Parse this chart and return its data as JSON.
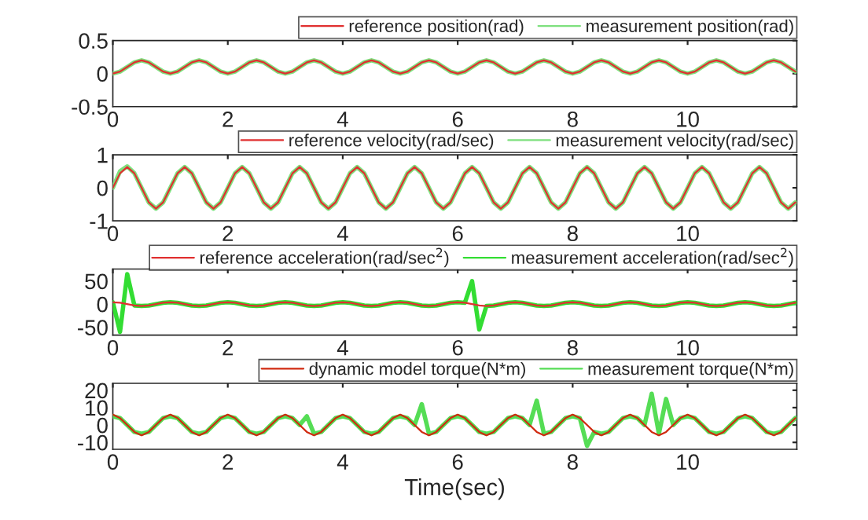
{
  "chart_data": [
    {
      "type": "line",
      "xlim": [
        0,
        11.9
      ],
      "xticks": [
        0,
        2,
        4,
        6,
        8,
        10
      ],
      "ylim": [
        -0.5,
        0.5
      ],
      "yticks": [
        -0.5,
        0,
        0.5
      ],
      "legend": "top right",
      "grid": false,
      "x": [
        0,
        0.125,
        0.25,
        0.375,
        0.5,
        0.625,
        0.75,
        0.875,
        1,
        1.125,
        1.25,
        1.375,
        1.5,
        1.625,
        1.75,
        1.875,
        2,
        2.125,
        2.25,
        2.375,
        2.5,
        2.625,
        2.75,
        2.875,
        3,
        3.125,
        3.25,
        3.375,
        3.5,
        3.625,
        3.75,
        3.875,
        4,
        4.125,
        4.25,
        4.375,
        4.5,
        4.625,
        4.75,
        4.875,
        5,
        5.125,
        5.25,
        5.375,
        5.5,
        5.625,
        5.75,
        5.875,
        6,
        6.125,
        6.25,
        6.375,
        6.5,
        6.625,
        6.75,
        6.875,
        7,
        7.125,
        7.25,
        7.375,
        7.5,
        7.625,
        7.75,
        7.875,
        8,
        8.125,
        8.25,
        8.375,
        8.5,
        8.625,
        8.75,
        8.875,
        9,
        9.125,
        9.25,
        9.375,
        9.5,
        9.625,
        9.75,
        9.875,
        10,
        10.125,
        10.25,
        10.375,
        10.5,
        10.625,
        10.75,
        10.875,
        11,
        11.125,
        11.25,
        11.375,
        11.5,
        11.625,
        11.75,
        11.875
      ],
      "series": [
        {
          "name": "reference position(rad)",
          "color": "#e03030",
          "values": [
            0,
            0.03,
            0.1,
            0.17,
            0.2,
            0.17,
            0.1,
            0.03,
            0,
            0.03,
            0.1,
            0.17,
            0.2,
            0.17,
            0.1,
            0.03,
            0,
            0.03,
            0.1,
            0.17,
            0.2,
            0.17,
            0.1,
            0.03,
            0,
            0.03,
            0.1,
            0.17,
            0.2,
            0.17,
            0.1,
            0.03,
            0,
            0.03,
            0.1,
            0.17,
            0.2,
            0.17,
            0.1,
            0.03,
            0,
            0.03,
            0.1,
            0.17,
            0.2,
            0.17,
            0.1,
            0.03,
            0,
            0.03,
            0.1,
            0.17,
            0.2,
            0.17,
            0.1,
            0.03,
            0,
            0.03,
            0.1,
            0.17,
            0.2,
            0.17,
            0.1,
            0.03,
            0,
            0.03,
            0.1,
            0.17,
            0.2,
            0.17,
            0.1,
            0.03,
            0,
            0.03,
            0.1,
            0.17,
            0.2,
            0.17,
            0.1,
            0.03,
            0,
            0.03,
            0.1,
            0.17,
            0.2,
            0.17,
            0.1,
            0.03,
            0,
            0.03,
            0.1,
            0.17,
            0.2,
            0.17,
            0.1,
            0.03
          ]
        },
        {
          "name": "measurement position(rad)",
          "color": "#7ee07e",
          "values": [
            0,
            0.03,
            0.1,
            0.17,
            0.2,
            0.17,
            0.1,
            0.03,
            0,
            0.03,
            0.1,
            0.17,
            0.2,
            0.17,
            0.1,
            0.03,
            0,
            0.03,
            0.1,
            0.17,
            0.2,
            0.17,
            0.1,
            0.03,
            0,
            0.03,
            0.1,
            0.17,
            0.2,
            0.17,
            0.1,
            0.03,
            0,
            0.03,
            0.1,
            0.17,
            0.2,
            0.17,
            0.1,
            0.03,
            0,
            0.03,
            0.1,
            0.17,
            0.2,
            0.17,
            0.1,
            0.03,
            0,
            0.03,
            0.1,
            0.17,
            0.2,
            0.17,
            0.1,
            0.03,
            0,
            0.03,
            0.1,
            0.17,
            0.2,
            0.17,
            0.1,
            0.03,
            0,
            0.03,
            0.1,
            0.17,
            0.2,
            0.17,
            0.1,
            0.03,
            0,
            0.03,
            0.1,
            0.17,
            0.2,
            0.17,
            0.1,
            0.03,
            0,
            0.03,
            0.1,
            0.17,
            0.2,
            0.17,
            0.1,
            0.03,
            0,
            0.03,
            0.1,
            0.17,
            0.2,
            0.17,
            0.1,
            0.03
          ]
        }
      ]
    },
    {
      "type": "line",
      "xlim": [
        0,
        11.9
      ],
      "xticks": [
        0,
        2,
        4,
        6,
        8,
        10
      ],
      "ylim": [
        -1,
        1
      ],
      "yticks": [
        -1,
        0,
        1
      ],
      "legend": "top right",
      "grid": false,
      "x": [
        0,
        0.125,
        0.25,
        0.375,
        0.5,
        0.625,
        0.75,
        0.875,
        1,
        1.125,
        1.25,
        1.375,
        1.5,
        1.625,
        1.75,
        1.875,
        2,
        2.125,
        2.25,
        2.375,
        2.5,
        2.625,
        2.75,
        2.875,
        3,
        3.125,
        3.25,
        3.375,
        3.5,
        3.625,
        3.75,
        3.875,
        4,
        4.125,
        4.25,
        4.375,
        4.5,
        4.625,
        4.75,
        4.875,
        5,
        5.125,
        5.25,
        5.375,
        5.5,
        5.625,
        5.75,
        5.875,
        6,
        6.125,
        6.25,
        6.375,
        6.5,
        6.625,
        6.75,
        6.875,
        7,
        7.125,
        7.25,
        7.375,
        7.5,
        7.625,
        7.75,
        7.875,
        8,
        8.125,
        8.25,
        8.375,
        8.5,
        8.625,
        8.75,
        8.875,
        9,
        9.125,
        9.25,
        9.375,
        9.5,
        9.625,
        9.75,
        9.875,
        10,
        10.125,
        10.25,
        10.375,
        10.5,
        10.625,
        10.75,
        10.875,
        11,
        11.125,
        11.25,
        11.375,
        11.5,
        11.625,
        11.75,
        11.875
      ],
      "series": [
        {
          "name": "reference velocity(rad/sec)",
          "color": "#e03030",
          "values": [
            0,
            0.44,
            0.63,
            0.44,
            0,
            -0.44,
            -0.63,
            -0.44,
            0,
            0.44,
            0.63,
            0.44,
            0,
            -0.44,
            -0.63,
            -0.44,
            0,
            0.44,
            0.63,
            0.44,
            0,
            -0.44,
            -0.63,
            -0.44,
            0,
            0.44,
            0.63,
            0.44,
            0,
            -0.44,
            -0.63,
            -0.44,
            0,
            0.44,
            0.63,
            0.44,
            0,
            -0.44,
            -0.63,
            -0.44,
            0,
            0.44,
            0.63,
            0.44,
            0,
            -0.44,
            -0.63,
            -0.44,
            0,
            0.44,
            0.63,
            0.44,
            0,
            -0.44,
            -0.63,
            -0.44,
            0,
            0.44,
            0.63,
            0.44,
            0,
            -0.44,
            -0.63,
            -0.44,
            0,
            0.44,
            0.63,
            0.44,
            0,
            -0.44,
            -0.63,
            -0.44,
            0,
            0.44,
            0.63,
            0.44,
            0,
            -0.44,
            -0.63,
            -0.44,
            0,
            0.44,
            0.63,
            0.44,
            0,
            -0.44,
            -0.63,
            -0.44,
            0,
            0.44,
            0.63,
            0.44,
            0,
            -0.44,
            -0.63,
            -0.44
          ]
        },
        {
          "name": "measurement velocity(rad/sec)",
          "color": "#7ee07e",
          "values": [
            0,
            0.5,
            0.65,
            0.44,
            0,
            -0.44,
            -0.63,
            -0.44,
            0,
            0.44,
            0.63,
            0.44,
            0,
            -0.44,
            -0.63,
            -0.44,
            0,
            0.44,
            0.63,
            0.44,
            0,
            -0.44,
            -0.63,
            -0.44,
            0,
            0.44,
            0.63,
            0.44,
            0,
            -0.44,
            -0.63,
            -0.44,
            0,
            0.44,
            0.63,
            0.44,
            0,
            -0.44,
            -0.63,
            -0.44,
            0,
            0.44,
            0.63,
            0.44,
            0,
            -0.44,
            -0.63,
            -0.44,
            0,
            0.44,
            0.63,
            0.44,
            0,
            -0.44,
            -0.63,
            -0.44,
            0,
            0.44,
            0.63,
            0.44,
            0,
            -0.44,
            -0.63,
            -0.44,
            0,
            0.44,
            0.63,
            0.44,
            0,
            -0.44,
            -0.63,
            -0.44,
            0,
            0.44,
            0.63,
            0.44,
            0,
            -0.44,
            -0.63,
            -0.44,
            0,
            0.44,
            0.63,
            0.44,
            0,
            -0.44,
            -0.63,
            -0.44,
            0,
            0.44,
            0.63,
            0.44,
            0,
            -0.44,
            -0.63,
            -0.44
          ]
        }
      ]
    },
    {
      "type": "line",
      "xlim": [
        0,
        11.9
      ],
      "xticks": [
        0,
        2,
        4,
        6,
        8,
        10
      ],
      "ylim": [
        -67,
        76
      ],
      "yticks": [
        -50,
        0,
        50
      ],
      "legend": "top right",
      "grid": false,
      "x": [
        0,
        0.125,
        0.25,
        0.375,
        0.5,
        0.625,
        0.75,
        0.875,
        1,
        1.125,
        1.25,
        1.375,
        1.5,
        1.625,
        1.75,
        1.875,
        2,
        2.125,
        2.25,
        2.375,
        2.5,
        2.625,
        2.75,
        2.875,
        3,
        3.125,
        3.25,
        3.375,
        3.5,
        3.625,
        3.75,
        3.875,
        4,
        4.125,
        4.25,
        4.375,
        4.5,
        4.625,
        4.75,
        4.875,
        5,
        5.125,
        5.25,
        5.375,
        5.5,
        5.625,
        5.75,
        5.875,
        6,
        6.125,
        6.25,
        6.375,
        6.5,
        6.625,
        6.75,
        6.875,
        7,
        7.125,
        7.25,
        7.375,
        7.5,
        7.625,
        7.75,
        7.875,
        8,
        8.125,
        8.25,
        8.375,
        8.5,
        8.625,
        8.75,
        8.875,
        9,
        9.125,
        9.25,
        9.375,
        9.5,
        9.625,
        9.75,
        9.875,
        10,
        10.125,
        10.25,
        10.375,
        10.5,
        10.625,
        10.75,
        10.875,
        11,
        11.125,
        11.25,
        11.375,
        11.5,
        11.625,
        11.75,
        11.875
      ],
      "series": [
        {
          "name": "reference acceleration(rad/sec$^{2}$)",
          "color": "#e03030",
          "values": [
            4,
            3,
            0,
            -3,
            -4,
            -3,
            0,
            3,
            4,
            3,
            0,
            -3,
            -4,
            -3,
            0,
            3,
            4,
            3,
            0,
            -3,
            -4,
            -3,
            0,
            3,
            4,
            3,
            0,
            -3,
            -4,
            -3,
            0,
            3,
            4,
            3,
            0,
            -3,
            -4,
            -3,
            0,
            3,
            4,
            3,
            0,
            -3,
            -4,
            -3,
            0,
            3,
            4,
            3,
            0,
            -3,
            -4,
            -3,
            0,
            3,
            4,
            3,
            0,
            -3,
            -4,
            -3,
            0,
            3,
            4,
            3,
            0,
            -3,
            -4,
            -3,
            0,
            3,
            4,
            3,
            0,
            -3,
            -4,
            -3,
            0,
            3,
            4,
            3,
            0,
            -3,
            -4,
            -3,
            0,
            3,
            4,
            3,
            0,
            -3,
            -4,
            -3,
            0,
            3
          ]
        },
        {
          "name": "measurement acceleration(rad/sec$^{2}$)",
          "color": "#33dd33",
          "values": [
            4,
            -60,
            65,
            -3,
            -4,
            -3,
            0,
            3,
            4,
            3,
            0,
            -3,
            -4,
            -3,
            0,
            3,
            4,
            3,
            0,
            -3,
            -4,
            -3,
            0,
            3,
            4,
            3,
            0,
            -3,
            -4,
            -3,
            0,
            3,
            4,
            3,
            0,
            -3,
            -4,
            -3,
            0,
            3,
            4,
            3,
            0,
            -3,
            -4,
            -3,
            0,
            3,
            4,
            3,
            50,
            -55,
            -4,
            -3,
            0,
            3,
            4,
            3,
            0,
            -3,
            -4,
            -3,
            0,
            3,
            4,
            3,
            0,
            -3,
            -4,
            -3,
            0,
            3,
            4,
            3,
            0,
            -3,
            -4,
            -3,
            0,
            3,
            4,
            3,
            0,
            -3,
            -4,
            -3,
            0,
            3,
            4,
            3,
            0,
            -3,
            -4,
            -3,
            0,
            3
          ]
        }
      ]
    },
    {
      "type": "line",
      "xlim": [
        0,
        11.9
      ],
      "xticks": [
        0,
        2,
        4,
        6,
        8,
        10
      ],
      "ylim": [
        -14,
        24
      ],
      "yticks": [
        -10,
        0,
        10,
        20
      ],
      "legend": "top right",
      "grid": false,
      "xlabel": "Time(sec)",
      "x": [
        0,
        0.125,
        0.25,
        0.375,
        0.5,
        0.625,
        0.75,
        0.875,
        1,
        1.125,
        1.25,
        1.375,
        1.5,
        1.625,
        1.75,
        1.875,
        2,
        2.125,
        2.25,
        2.375,
        2.5,
        2.625,
        2.75,
        2.875,
        3,
        3.125,
        3.25,
        3.375,
        3.5,
        3.625,
        3.75,
        3.875,
        4,
        4.125,
        4.25,
        4.375,
        4.5,
        4.625,
        4.75,
        4.875,
        5,
        5.125,
        5.25,
        5.375,
        5.5,
        5.625,
        5.75,
        5.875,
        6,
        6.125,
        6.25,
        6.375,
        6.5,
        6.625,
        6.75,
        6.875,
        7,
        7.125,
        7.25,
        7.375,
        7.5,
        7.625,
        7.75,
        7.875,
        8,
        8.125,
        8.25,
        8.375,
        8.5,
        8.625,
        8.75,
        8.875,
        9,
        9.125,
        9.25,
        9.375,
        9.5,
        9.625,
        9.75,
        9.875,
        10,
        10.125,
        10.25,
        10.375,
        10.5,
        10.625,
        10.75,
        10.875,
        11,
        11.125,
        11.25,
        11.375,
        11.5,
        11.625,
        11.75,
        11.875
      ],
      "series": [
        {
          "name": "dynamic model torque(N*m)",
          "color": "#d02a10",
          "values": [
            6,
            4,
            0,
            -4,
            -6,
            -4,
            0,
            4,
            6,
            4,
            0,
            -4,
            -6,
            -4,
            0,
            4,
            6,
            4,
            0,
            -4,
            -6,
            -4,
            0,
            4,
            6,
            4,
            0,
            -4,
            -6,
            -4,
            0,
            4,
            6,
            4,
            0,
            -4,
            -6,
            -4,
            0,
            4,
            6,
            4,
            0,
            -4,
            -6,
            -4,
            0,
            4,
            6,
            4,
            0,
            -4,
            -6,
            -4,
            0,
            4,
            6,
            4,
            0,
            -4,
            -6,
            -4,
            0,
            4,
            6,
            4,
            0,
            -4,
            -6,
            -4,
            0,
            4,
            6,
            4,
            0,
            -4,
            -6,
            -4,
            0,
            4,
            6,
            4,
            0,
            -4,
            -6,
            -4,
            0,
            4,
            6,
            4,
            0,
            -4,
            -6,
            -4,
            0,
            4
          ]
        },
        {
          "name": "measurement torque(N*m)",
          "color": "#55dd55",
          "values": [
            5,
            4,
            0,
            -4,
            -5,
            -4,
            0,
            4,
            5,
            4,
            0,
            -4,
            -5,
            -4,
            0,
            4,
            5,
            4,
            0,
            -4,
            -5,
            -4,
            0,
            4,
            5,
            4,
            0,
            5,
            -5,
            -4,
            0,
            4,
            5,
            4,
            0,
            -4,
            -5,
            -4,
            0,
            4,
            5,
            4,
            0,
            12,
            -5,
            -4,
            0,
            4,
            5,
            4,
            0,
            -4,
            -5,
            -4,
            0,
            4,
            5,
            4,
            0,
            14,
            -5,
            -4,
            0,
            4,
            5,
            4,
            -12,
            -4,
            -5,
            -4,
            0,
            4,
            5,
            4,
            0,
            18,
            -5,
            15,
            0,
            4,
            5,
            4,
            0,
            -4,
            -5,
            -4,
            0,
            4,
            5,
            4,
            0,
            -4,
            -5,
            -4,
            0,
            4
          ]
        }
      ]
    }
  ]
}
